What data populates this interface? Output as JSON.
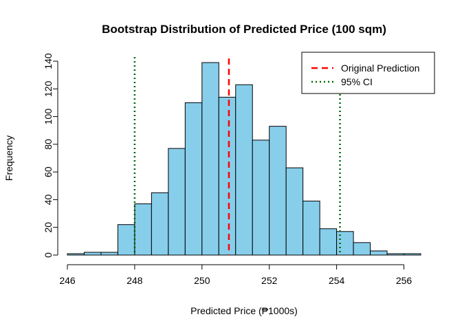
{
  "chart_data": {
    "type": "bar",
    "title": "Bootstrap Distribution of Predicted Price (100 sqm)",
    "xlabel": "Predicted Price (₱1000s)",
    "ylabel": "Frequency",
    "bin_width": 0.5,
    "bin_starts": [
      246.0,
      246.5,
      247.0,
      247.5,
      248.0,
      248.5,
      249.0,
      249.5,
      250.0,
      250.5,
      251.0,
      251.5,
      252.0,
      252.5,
      253.0,
      253.5,
      254.0,
      254.5,
      255.0,
      255.5,
      256.0
    ],
    "values": [
      1,
      2,
      2,
      22,
      37,
      45,
      77,
      110,
      139,
      114,
      123,
      83,
      93,
      63,
      39,
      19,
      17,
      9,
      3,
      1,
      1
    ],
    "xlim": [
      246,
      256.5
    ],
    "ylim": [
      0,
      140
    ],
    "x_ticks": [
      246,
      248,
      250,
      252,
      254,
      256
    ],
    "x_tick_labels": [
      "246",
      "248",
      "250",
      "252",
      "254",
      "256"
    ],
    "y_ticks": [
      0,
      20,
      40,
      60,
      80,
      100,
      120,
      140
    ],
    "y_tick_labels": [
      "0",
      "20",
      "40",
      "60",
      "80",
      "100",
      "120",
      "140"
    ],
    "original_prediction": 250.8,
    "ci_95": [
      248.0,
      254.1
    ],
    "legend": {
      "position": "top-right",
      "entries": [
        {
          "label": "Original Prediction",
          "color": "#ff0000",
          "style": "dashed"
        },
        {
          "label": "95% CI",
          "color": "#006400",
          "style": "dotted"
        }
      ]
    },
    "colors": {
      "bar_fill": "#87ceeb",
      "bar_stroke": "#000000",
      "prediction_line": "#ff0000",
      "ci_line": "#006400"
    }
  }
}
